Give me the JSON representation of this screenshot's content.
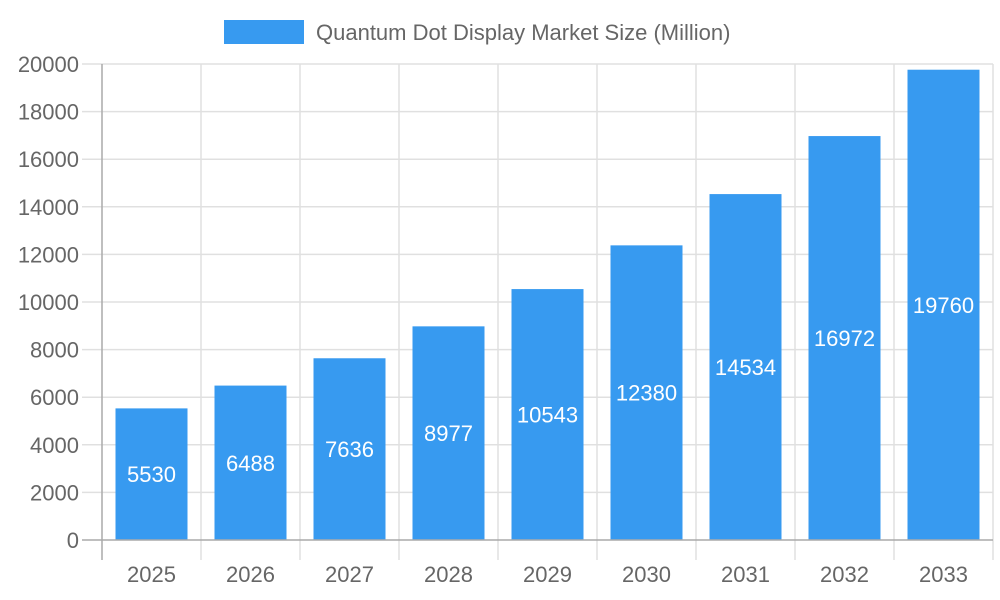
{
  "chart_data": {
    "type": "bar",
    "categories": [
      "2025",
      "2026",
      "2027",
      "2028",
      "2029",
      "2030",
      "2031",
      "2032",
      "2033"
    ],
    "series": [
      {
        "name": "Quantum Dot Display Market Size (Million)",
        "values": [
          5530,
          6488,
          7636,
          8977,
          10543,
          12380,
          14534,
          16972,
          19760
        ],
        "color": "#379AF0"
      }
    ],
    "ylim": [
      0,
      20000
    ],
    "yticks": [
      0,
      2000,
      4000,
      6000,
      8000,
      10000,
      12000,
      14000,
      16000,
      18000,
      20000
    ],
    "grid": true,
    "legend": "top-center",
    "data_labels": true,
    "title": "",
    "xlabel": "",
    "ylabel": ""
  }
}
